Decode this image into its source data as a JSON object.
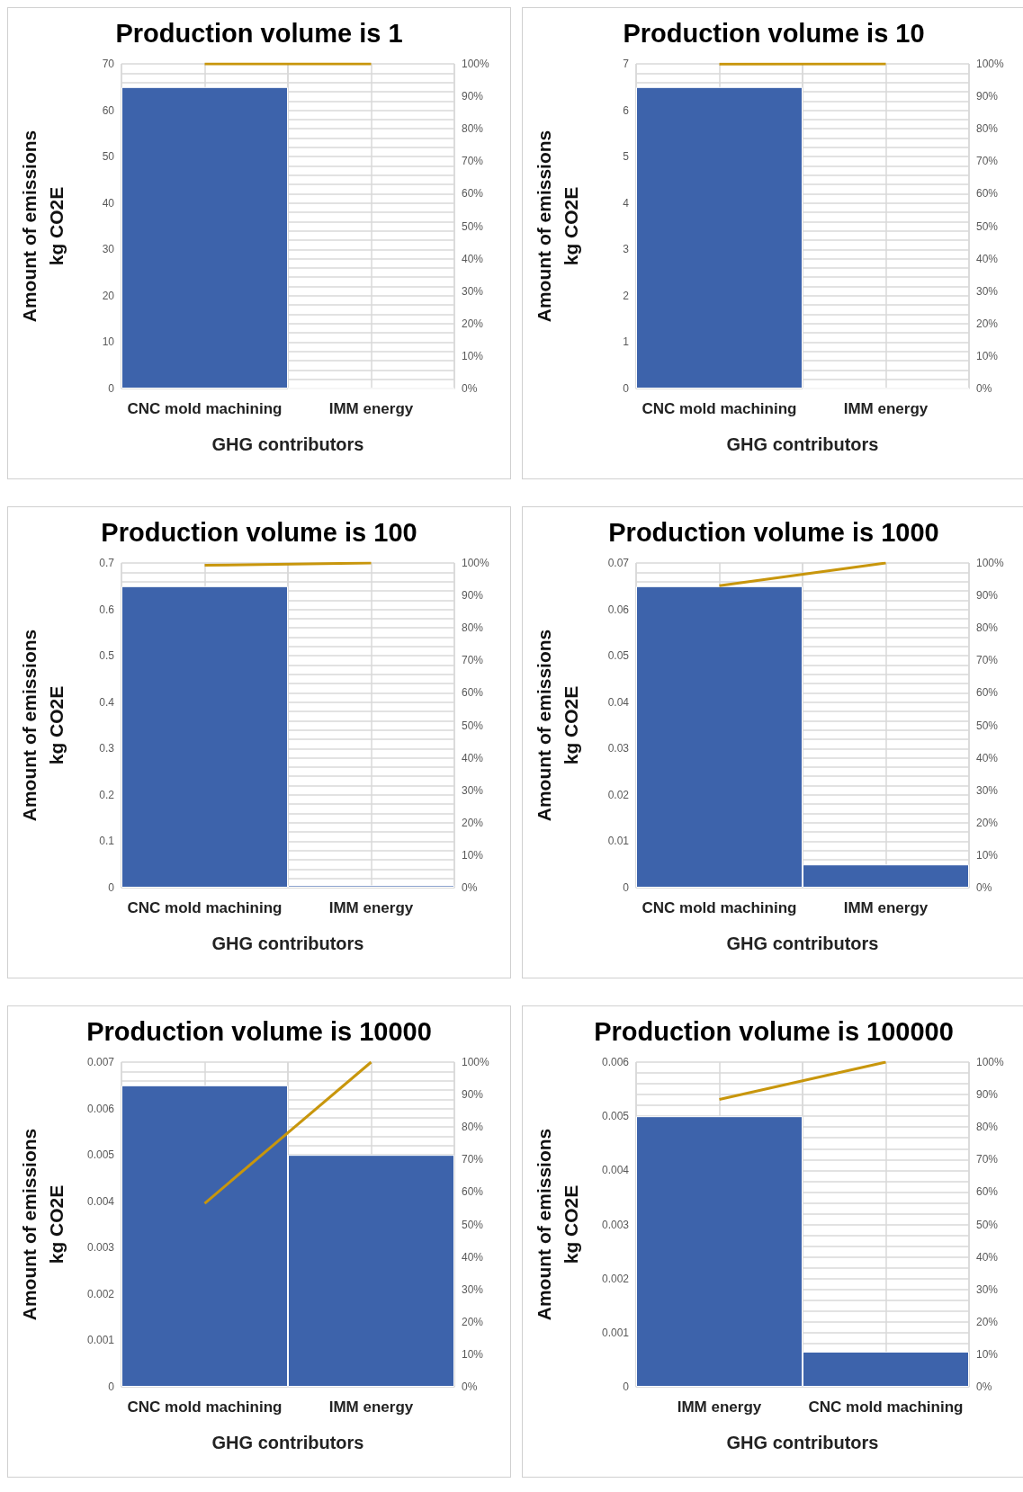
{
  "chart_data": [
    {
      "type": "bar",
      "title": "Production volume is 1",
      "xlabel": "GHG contributors",
      "ylabel": "Amount of emissions\nkg CO2E",
      "categories": [
        "CNC mold machining",
        "IMM energy"
      ],
      "series": [
        {
          "color": "#3d63ab",
          "values": [
            65,
            0
          ]
        },
        {
          "type": "line",
          "axis": "y2",
          "color": "#c8960c",
          "values": [
            100,
            100
          ]
        }
      ],
      "ylim": [
        0,
        70
      ],
      "yticks": [
        0,
        10,
        20,
        30,
        40,
        50,
        60,
        70
      ],
      "y2lim": [
        0,
        100
      ],
      "y2ticks": [
        {
          "value": 0,
          "label": "0%"
        },
        {
          "value": 10,
          "label": "10%"
        },
        {
          "value": 20,
          "label": "20%"
        },
        {
          "value": 30,
          "label": "30%"
        },
        {
          "value": 40,
          "label": "40%"
        },
        {
          "value": 50,
          "label": "50%"
        },
        {
          "value": 60,
          "label": "60%"
        },
        {
          "value": 70,
          "label": "70%"
        },
        {
          "value": 80,
          "label": "80%"
        },
        {
          "value": 90,
          "label": "90%"
        },
        {
          "value": 100,
          "label": "100%"
        }
      ],
      "grid": true,
      "marker": "none"
    },
    {
      "type": "bar",
      "title": "Production volume is 10",
      "xlabel": "GHG contributors",
      "ylabel": "Amount of emissions\nkg CO2E",
      "categories": [
        "CNC mold machining",
        "IMM energy"
      ],
      "series": [
        {
          "color": "#3d63ab",
          "values": [
            6.5,
            0
          ]
        },
        {
          "type": "line",
          "axis": "y2",
          "color": "#c8960c",
          "values": [
            99.9,
            100
          ]
        }
      ],
      "ylim": [
        0,
        7
      ],
      "yticks": [
        0,
        1,
        2,
        3,
        4,
        5,
        6,
        7
      ],
      "y2lim": [
        0,
        100
      ],
      "y2ticks": [
        {
          "value": 0,
          "label": "0%"
        },
        {
          "value": 10,
          "label": "10%"
        },
        {
          "value": 20,
          "label": "20%"
        },
        {
          "value": 30,
          "label": "30%"
        },
        {
          "value": 40,
          "label": "40%"
        },
        {
          "value": 50,
          "label": "50%"
        },
        {
          "value": 60,
          "label": "60%"
        },
        {
          "value": 70,
          "label": "70%"
        },
        {
          "value": 80,
          "label": "80%"
        },
        {
          "value": 90,
          "label": "90%"
        },
        {
          "value": 100,
          "label": "100%"
        }
      ],
      "grid": true,
      "marker": "none"
    },
    {
      "type": "bar",
      "title": "Production volume is 100",
      "xlabel": "GHG contributors",
      "ylabel": "Amount of emissions\nkg CO2E",
      "categories": [
        "CNC mold machining",
        "IMM energy"
      ],
      "series": [
        {
          "color": "#3d63ab",
          "values": [
            0.65,
            0.005
          ]
        },
        {
          "type": "line",
          "axis": "y2",
          "color": "#c8960c",
          "values": [
            99.3,
            100
          ]
        }
      ],
      "ylim": [
        0,
        0.7
      ],
      "yticks": [
        0,
        0.1,
        0.2,
        0.3,
        0.4,
        0.5,
        0.6,
        0.7
      ],
      "y2lim": [
        0,
        100
      ],
      "y2ticks": [
        {
          "value": 0,
          "label": "0%"
        },
        {
          "value": 10,
          "label": "10%"
        },
        {
          "value": 20,
          "label": "20%"
        },
        {
          "value": 30,
          "label": "30%"
        },
        {
          "value": 40,
          "label": "40%"
        },
        {
          "value": 50,
          "label": "50%"
        },
        {
          "value": 60,
          "label": "60%"
        },
        {
          "value": 70,
          "label": "70%"
        },
        {
          "value": 80,
          "label": "80%"
        },
        {
          "value": 90,
          "label": "90%"
        },
        {
          "value": 100,
          "label": "100%"
        }
      ],
      "grid": true,
      "marker": "none"
    },
    {
      "type": "bar",
      "title": "Production volume is 1000",
      "xlabel": "GHG contributors",
      "ylabel": "Amount of emissions\nkg CO2E",
      "categories": [
        "CNC mold machining",
        "IMM energy"
      ],
      "series": [
        {
          "color": "#3d63ab",
          "values": [
            0.065,
            0.005
          ]
        },
        {
          "type": "line",
          "axis": "y2",
          "color": "#c8960c",
          "values": [
            93,
            100
          ]
        }
      ],
      "ylim": [
        0,
        0.07
      ],
      "yticks": [
        0,
        0.01,
        0.02,
        0.03,
        0.04,
        0.05,
        0.06,
        0.07
      ],
      "y2lim": [
        0,
        100
      ],
      "y2ticks": [
        {
          "value": 0,
          "label": "0%"
        },
        {
          "value": 10,
          "label": "10%"
        },
        {
          "value": 20,
          "label": "20%"
        },
        {
          "value": 30,
          "label": "30%"
        },
        {
          "value": 40,
          "label": "40%"
        },
        {
          "value": 50,
          "label": "50%"
        },
        {
          "value": 60,
          "label": "60%"
        },
        {
          "value": 70,
          "label": "70%"
        },
        {
          "value": 80,
          "label": "80%"
        },
        {
          "value": 90,
          "label": "90%"
        },
        {
          "value": 100,
          "label": "100%"
        }
      ],
      "grid": true,
      "marker": "none"
    },
    {
      "type": "bar",
      "title": "Production volume is 10000",
      "xlabel": "GHG contributors",
      "ylabel": "Amount of emissions\nkg CO2E",
      "categories": [
        "CNC mold machining",
        "IMM energy"
      ],
      "series": [
        {
          "color": "#3d63ab",
          "values": [
            0.0065,
            0.005
          ]
        },
        {
          "type": "line",
          "axis": "y2",
          "color": "#c8960c",
          "values": [
            56.5,
            100
          ]
        }
      ],
      "ylim": [
        0,
        0.007
      ],
      "yticks": [
        0,
        0.001,
        0.002,
        0.003,
        0.004,
        0.005,
        0.006,
        0.007
      ],
      "y2lim": [
        0,
        100
      ],
      "y2ticks": [
        {
          "value": 0,
          "label": "0%"
        },
        {
          "value": 10,
          "label": "10%"
        },
        {
          "value": 20,
          "label": "20%"
        },
        {
          "value": 30,
          "label": "30%"
        },
        {
          "value": 40,
          "label": "40%"
        },
        {
          "value": 50,
          "label": "50%"
        },
        {
          "value": 60,
          "label": "60%"
        },
        {
          "value": 70,
          "label": "70%"
        },
        {
          "value": 80,
          "label": "80%"
        },
        {
          "value": 90,
          "label": "90%"
        },
        {
          "value": 100,
          "label": "100%"
        }
      ],
      "grid": true,
      "marker": "none"
    },
    {
      "type": "bar",
      "title": "Production volume is 100000",
      "xlabel": "GHG contributors",
      "ylabel": "Amount of emissions\nkg CO2E",
      "categories": [
        "IMM energy",
        "CNC mold machining"
      ],
      "series": [
        {
          "color": "#3d63ab",
          "values": [
            0.005,
            0.00065
          ]
        },
        {
          "type": "line",
          "axis": "y2",
          "color": "#c8960c",
          "values": [
            88.5,
            100
          ]
        }
      ],
      "ylim": [
        0,
        0.006
      ],
      "yticks": [
        0,
        0.001,
        0.002,
        0.003,
        0.004,
        0.005,
        0.006
      ],
      "y2lim": [
        0,
        100
      ],
      "y2ticks": [
        {
          "value": 0,
          "label": "0%"
        },
        {
          "value": 10,
          "label": "10%"
        },
        {
          "value": 20,
          "label": "20%"
        },
        {
          "value": 30,
          "label": "30%"
        },
        {
          "value": 40,
          "label": "40%"
        },
        {
          "value": 50,
          "label": "50%"
        },
        {
          "value": 60,
          "label": "60%"
        },
        {
          "value": 70,
          "label": "70%"
        },
        {
          "value": 80,
          "label": "80%"
        },
        {
          "value": 90,
          "label": "90%"
        },
        {
          "value": 100,
          "label": "100%"
        }
      ],
      "grid": true,
      "marker": "none"
    }
  ]
}
